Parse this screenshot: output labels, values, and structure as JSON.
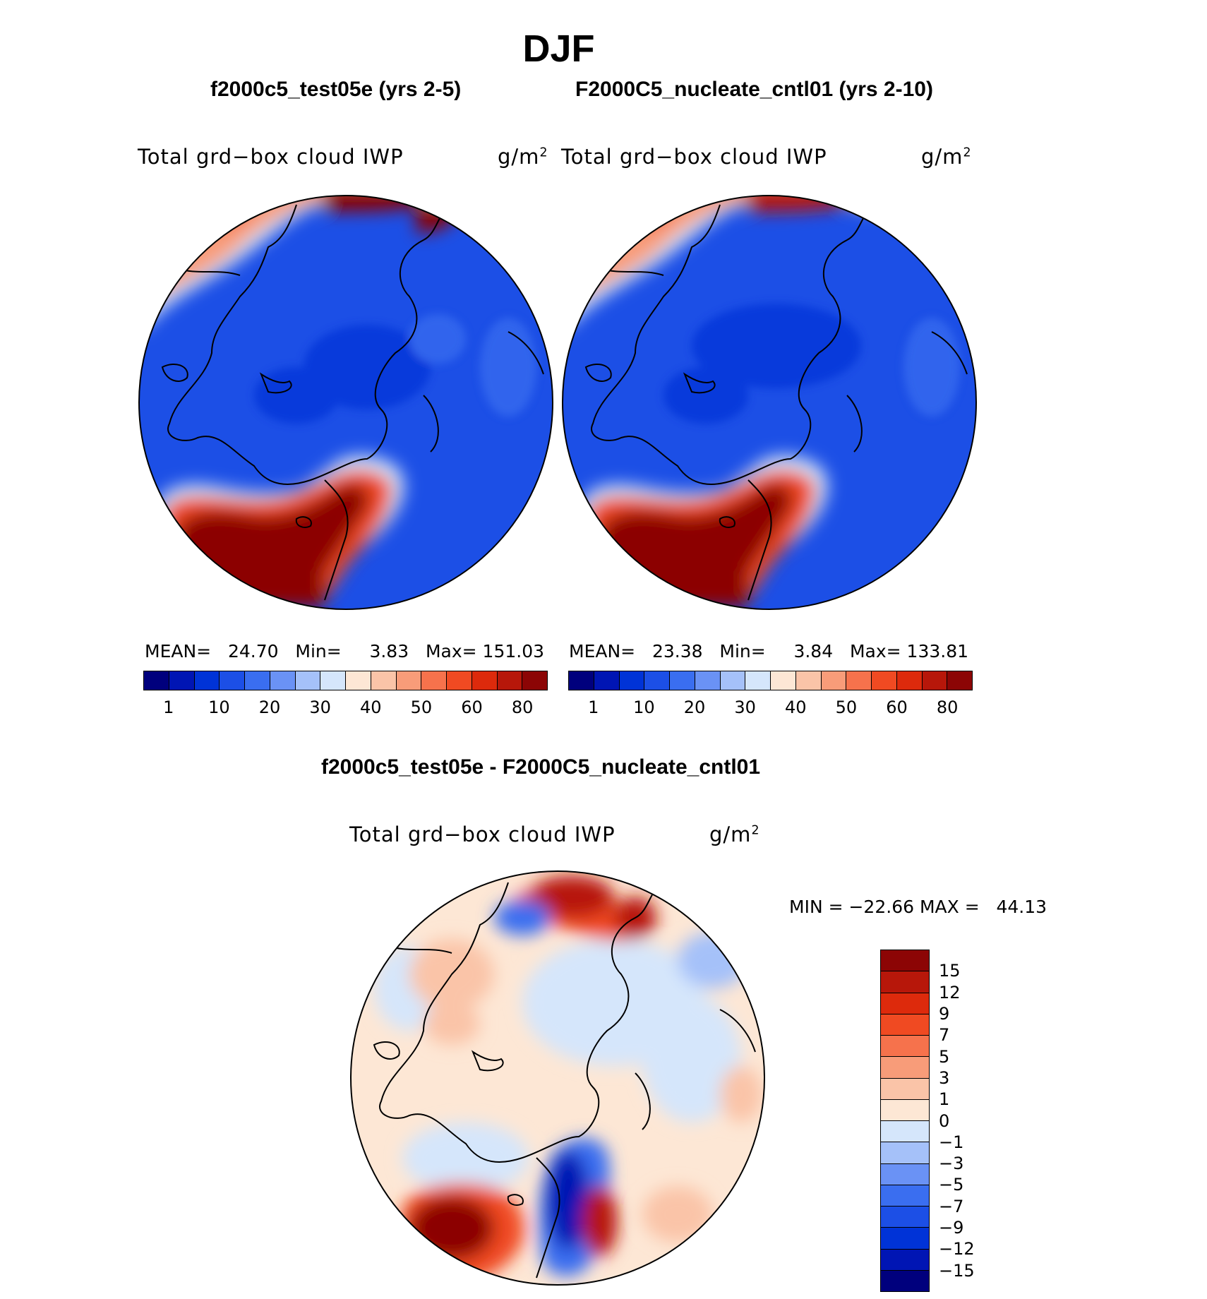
{
  "figure": {
    "title": "DJF",
    "left_case": "f2000c5_test05e (yrs 2-5)",
    "right_case": "F2000C5_nucleate_cntl01 (yrs 2-10)",
    "diff_title": "f2000c5_test05e - F2000C5_nucleate_cntl01"
  },
  "panels": {
    "left": {
      "variable": "Total grd−box cloud IWP",
      "units": "g/m",
      "units_sup": "2",
      "mean_label": "MEAN=",
      "mean": "24.70",
      "min_label": "Min=",
      "min": "3.83",
      "max_label": "Max=",
      "max": "151.03"
    },
    "right": {
      "variable": "Total grd−box cloud IWP",
      "units": "g/m",
      "units_sup": "2",
      "mean_label": "MEAN=",
      "mean": "23.38",
      "min_label": "Min=",
      "min": "3.84",
      "max_label": "Max=",
      "max": "133.81"
    },
    "diff": {
      "variable": "Total grd−box cloud IWP",
      "units": "g/m",
      "units_sup": "2",
      "minmax": "MIN = −22.66 MAX =   44.13"
    }
  },
  "colorbars": {
    "abs_colors": [
      "#00007d",
      "#0015b4",
      "#0033d7",
      "#1c4fe6",
      "#3a6ef0",
      "#6a92f5",
      "#a5c1f9",
      "#d5e6fb",
      "#fde7d5",
      "#fac4a8",
      "#f89c79",
      "#f6724c",
      "#f04a22",
      "#dd2a0c",
      "#b7170a",
      "#8c0505"
    ],
    "abs_ticks": [
      "1",
      "10",
      "20",
      "30",
      "40",
      "50",
      "60",
      "80"
    ],
    "diff_colors": [
      "#8c0505",
      "#b7170a",
      "#dd2a0c",
      "#f04a22",
      "#f6724c",
      "#f89c79",
      "#fac4a8",
      "#fde7d5",
      "#d5e6fb",
      "#a5c1f9",
      "#6a92f5",
      "#3a6ef0",
      "#1c4fe6",
      "#0033d7",
      "#0015b4",
      "#00007d"
    ],
    "diff_ticks": [
      "15",
      "12",
      "9",
      "7",
      "5",
      "3",
      "1",
      "0",
      "−1",
      "−3",
      "−5",
      "−7",
      "−9",
      "−12",
      "−15"
    ]
  }
}
